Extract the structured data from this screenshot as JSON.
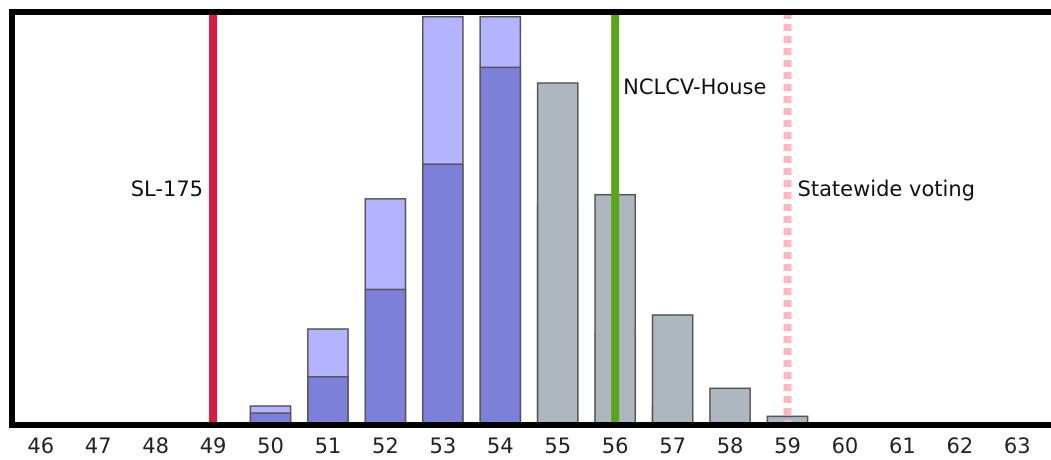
{
  "chart_data": {
    "type": "bar",
    "x": [
      50,
      51,
      52,
      53,
      54,
      55,
      56,
      57,
      58,
      59
    ],
    "xlim": [
      45.5,
      63.5
    ],
    "xticks": [
      "46",
      "47",
      "48",
      "49",
      "50",
      "51",
      "52",
      "53",
      "54",
      "55",
      "56",
      "57",
      "58",
      "59",
      "60",
      "61",
      "62",
      "63"
    ],
    "ylim": [
      0,
      100
    ],
    "series": [
      {
        "color": "#b3b3ff",
        "values": [
          4.6,
          23.3,
          54.9,
          99.1,
          99.1,
          53.6,
          22.2,
          4.6,
          0,
          0
        ]
      },
      {
        "color": "#aeb6c0",
        "values": [
          0,
          0,
          0,
          0,
          0,
          83.0,
          55.9,
          26.7,
          8.9,
          2.1
        ]
      },
      {
        "color": "#7c80d8",
        "values": [
          2.9,
          11.7,
          32.9,
          63.3,
          86.8,
          0,
          0,
          0,
          0,
          0
        ]
      }
    ],
    "vlines": [
      {
        "x": 49,
        "label": "SL-175",
        "color": "#d81a45",
        "style": "solid"
      },
      {
        "x": 56,
        "label": "NCLCV-House",
        "color": "#5aa61a",
        "style": "solid"
      },
      {
        "x": 59,
        "label": "Statewide voting",
        "color": "#ffb6c1",
        "style": "dashed"
      }
    ],
    "grid": false,
    "legend": "none"
  }
}
